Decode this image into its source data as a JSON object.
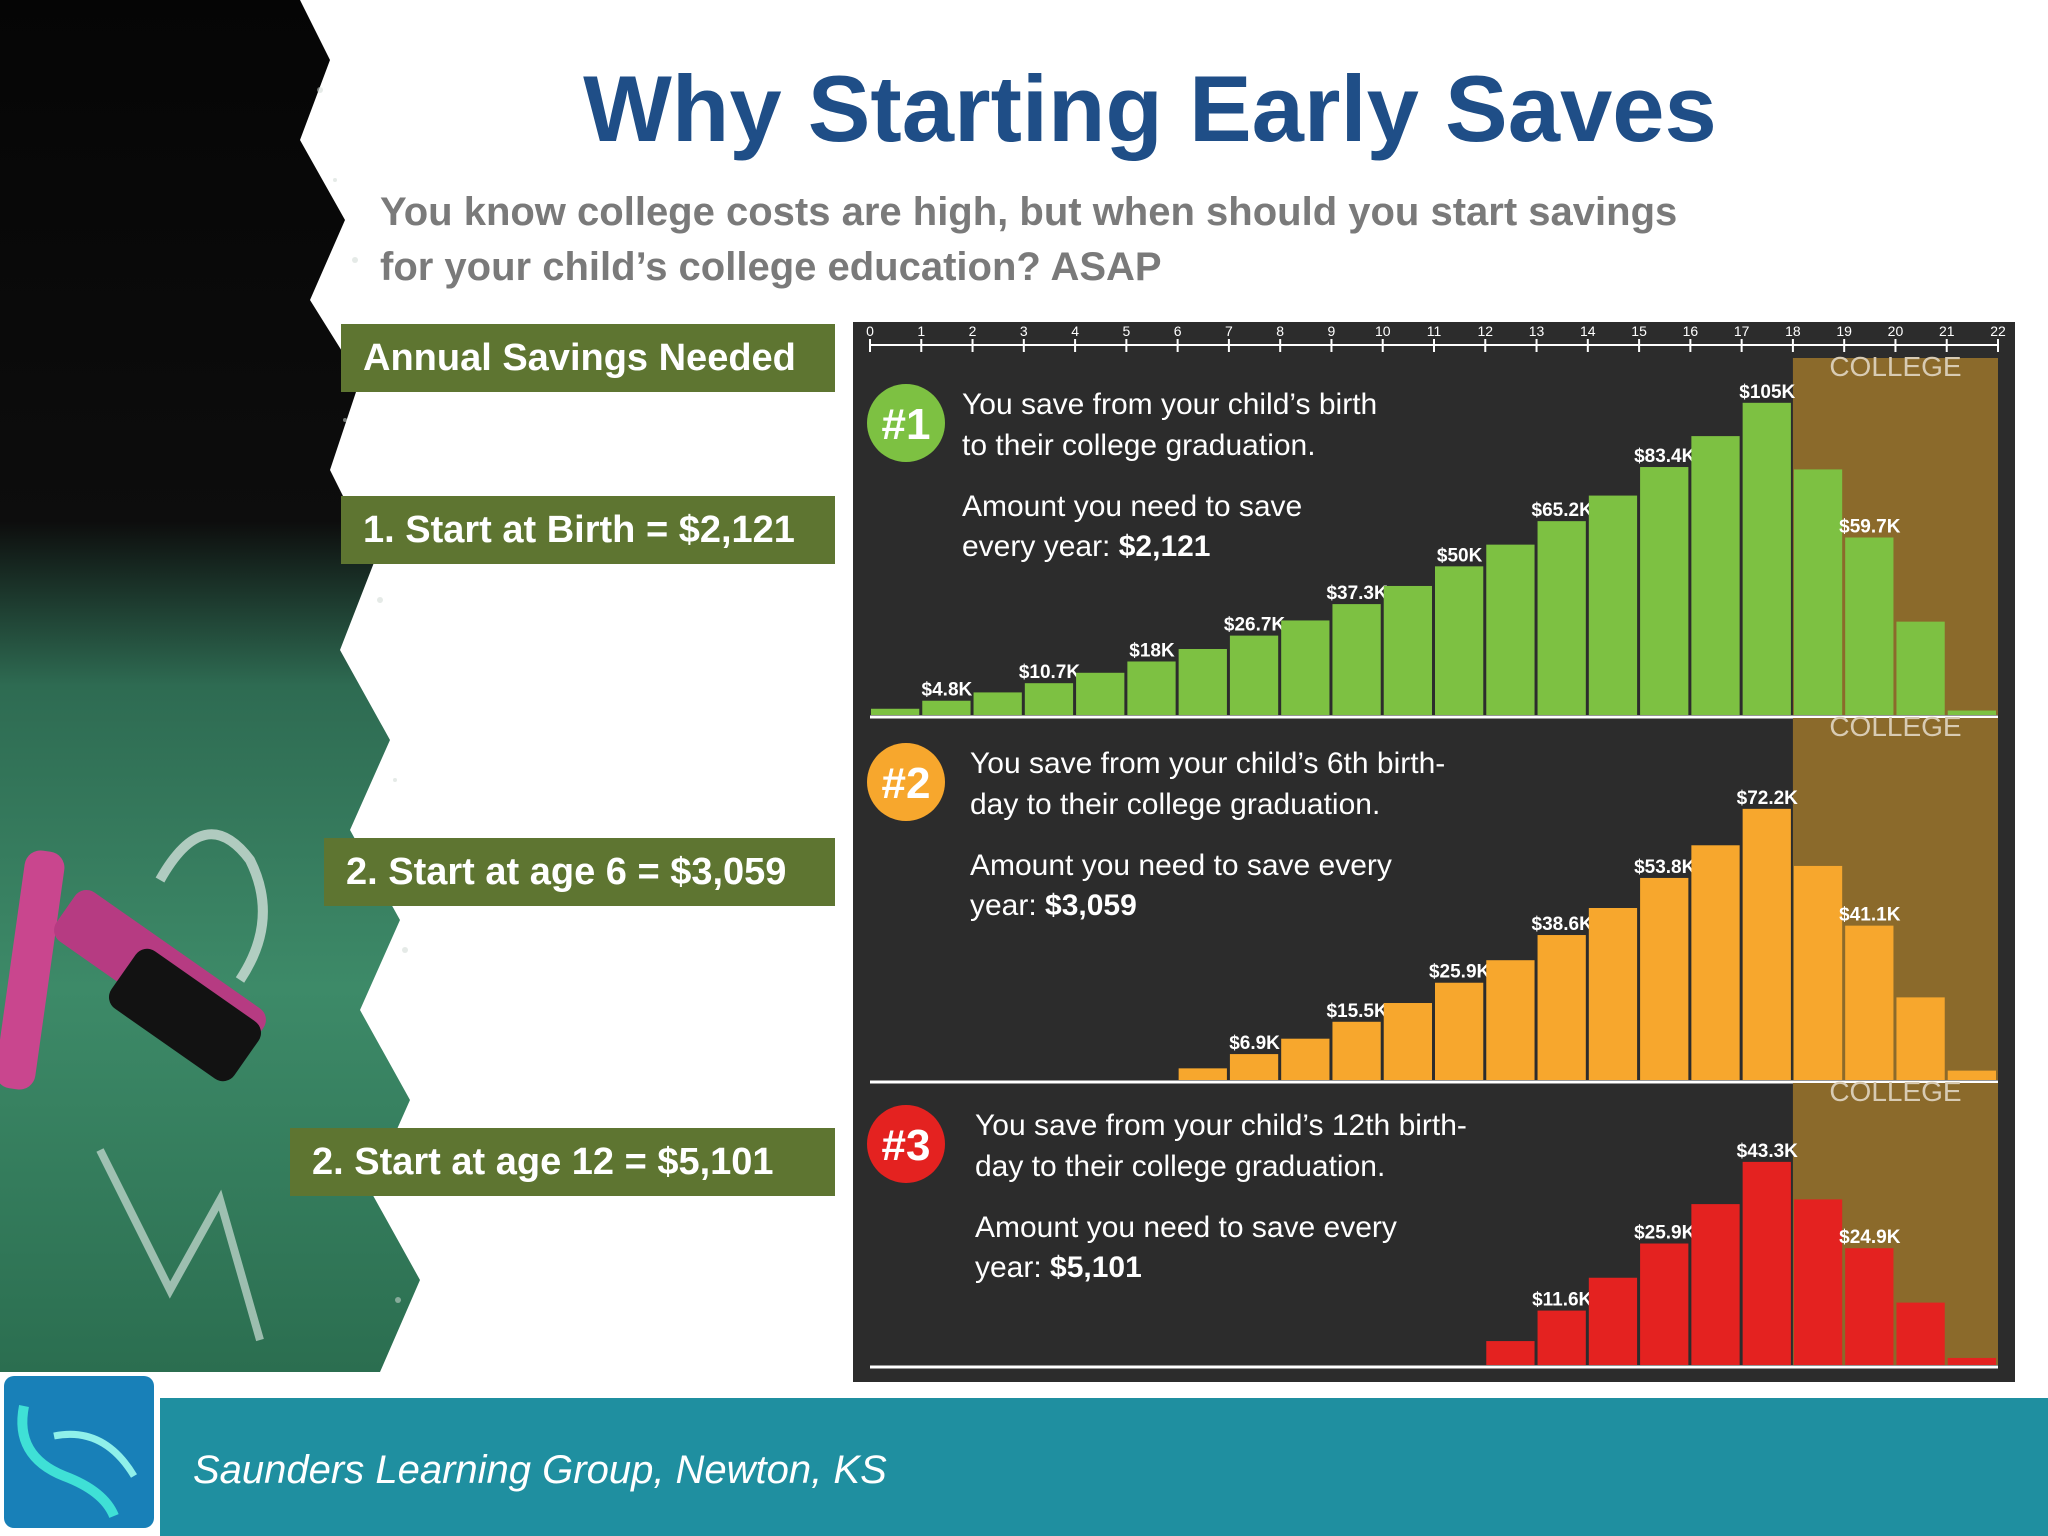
{
  "slide": {
    "title": "Why Starting Early Saves",
    "subtitle_line1": "You know college costs are high, but when should you start savings",
    "subtitle_line2": "for your child’s college education?  ASAP",
    "footer": "Saunders Learning Group, Newton, KS",
    "labels": {
      "header": "Annual Savings Needed",
      "birth": "1. Start at Birth = $2,121",
      "age6": "2. Start at age 6 = $3,059",
      "age12": "2. Start at age 12 = $5,101"
    },
    "colors": {
      "title": "#1f4e87",
      "label_bg": "#5e7531",
      "footer_bg": "#1f8fa0",
      "chart_bg": "#2c2c2c",
      "college_band": "#8b6a2b",
      "green": "#7dc142",
      "orange": "#f7a72d",
      "red": "#e42220"
    }
  },
  "chart_data": [
    {
      "type": "bar",
      "badge": "#1",
      "line1": "You save from your child’s birth",
      "line2": "to their college graduation.",
      "amount_line1": "Amount you need to save",
      "amount_line2_prefix": "every year: ",
      "amount_value": "$2,121",
      "college_label": "COLLEGE",
      "college_range": [
        18,
        22
      ],
      "x_ticks": [
        "0",
        "1",
        "2",
        "3",
        "4",
        "5",
        "6",
        "7",
        "8",
        "9",
        "10",
        "11",
        "12",
        "13",
        "14",
        "15",
        "16",
        "17",
        "18",
        "19",
        "20",
        "21",
        "22"
      ],
      "values": [
        2.1,
        4.8,
        7.6,
        10.7,
        14.2,
        18,
        22.2,
        26.7,
        31.8,
        37.3,
        43.4,
        50,
        57.3,
        65.2,
        73.8,
        83.4,
        93.8,
        105,
        82.6,
        59.7,
        31.4,
        1.5
      ],
      "labels": [
        "",
        "$4.8K",
        "",
        "$10.7K",
        "",
        "$18K",
        "",
        "$26.7K",
        "",
        "$37.3K",
        "",
        "$50K",
        "",
        "$65.2K",
        "",
        "$83.4K",
        "",
        "$105K",
        "",
        "$59.7K",
        "",
        ""
      ],
      "ylim": [
        0,
        112
      ]
    },
    {
      "type": "bar",
      "badge": "#2",
      "line1": "You save from your child’s 6th birth-",
      "line2": "day to their college graduation.",
      "amount_line1": "Amount you need to save every",
      "amount_line2_prefix": "year: ",
      "amount_value": "$3,059",
      "college_label": "COLLEGE",
      "college_range": [
        18,
        22
      ],
      "values": [
        0,
        0,
        0,
        0,
        0,
        0,
        3.1,
        6.9,
        11,
        15.5,
        20.5,
        25.9,
        31.9,
        38.6,
        45.8,
        53.8,
        62.5,
        72.2,
        57,
        41.1,
        22,
        2.5
      ],
      "labels": [
        "",
        "",
        "",
        "",
        "",
        "",
        "",
        "$6.9K",
        "",
        "$15.5K",
        "",
        "$25.9K",
        "",
        "$38.6K",
        "",
        "$53.8K",
        "",
        "$72.2K",
        "",
        "$41.1K",
        "",
        ""
      ],
      "ylim": [
        0,
        90
      ]
    },
    {
      "type": "bar",
      "badge": "#3",
      "line1": "You save from your child’s 12th birth-",
      "line2": "day to their college graduation.",
      "amount_line1": "Amount you need to save every",
      "amount_line2_prefix": "year: ",
      "amount_value": "$5,101",
      "college_label": "COLLEGE",
      "college_range": [
        18,
        22
      ],
      "values": [
        0,
        0,
        0,
        0,
        0,
        0,
        0,
        0,
        0,
        0,
        0,
        0,
        5.1,
        11.6,
        18.6,
        25.9,
        34.3,
        43.3,
        35.3,
        24.9,
        13.3,
        1.5
      ],
      "labels": [
        "",
        "",
        "",
        "",
        "",
        "",
        "",
        "",
        "",
        "",
        "",
        "",
        "",
        "$11.6K",
        "",
        "$25.9K",
        "",
        "$43.3K",
        "",
        "$24.9K",
        "",
        ""
      ],
      "ylim": [
        0,
        55
      ]
    }
  ]
}
